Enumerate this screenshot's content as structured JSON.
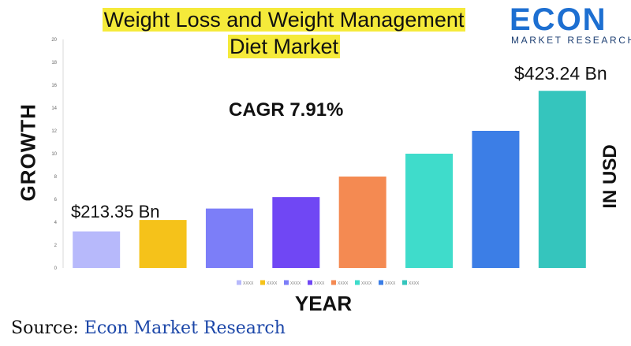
{
  "title": "Weight Loss and Weight Management Diet Market",
  "title_lines": [
    "Weight Loss and Weight Management",
    "Diet Market"
  ],
  "logo": {
    "word": "ECON",
    "sub": "MARKET RESEARCH"
  },
  "annotations": {
    "cagr": "CAGR 7.91%",
    "start_value": "$213.35 Bn",
    "end_value": "$423.24 Bn"
  },
  "source": {
    "prefix": "Source:",
    "name": "Econ Market Research"
  },
  "chart_data": {
    "type": "bar",
    "xlabel": "YEAR",
    "ylabel": "GROWTH",
    "ylabel_right": "IN USD",
    "ylim": [
      0,
      20
    ],
    "yticks": [
      "0",
      "2",
      "4",
      "6",
      "8",
      "10",
      "12",
      "14",
      "16",
      "18",
      "20"
    ],
    "grid": false,
    "legend_position": "bottom",
    "categories": [
      "XXXX",
      "XXXX",
      "XXXX",
      "XXXX",
      "XXXX",
      "XXXX",
      "XXXX",
      "XXXX"
    ],
    "values": [
      3.2,
      4.2,
      5.2,
      6.2,
      8.0,
      10.0,
      12.0,
      15.5
    ],
    "colors": [
      "#b7b9fb",
      "#f5c21a",
      "#7c7ef8",
      "#7047f4",
      "#f48a52",
      "#3fdccb",
      "#3c7ee6",
      "#35c5bd"
    ]
  }
}
